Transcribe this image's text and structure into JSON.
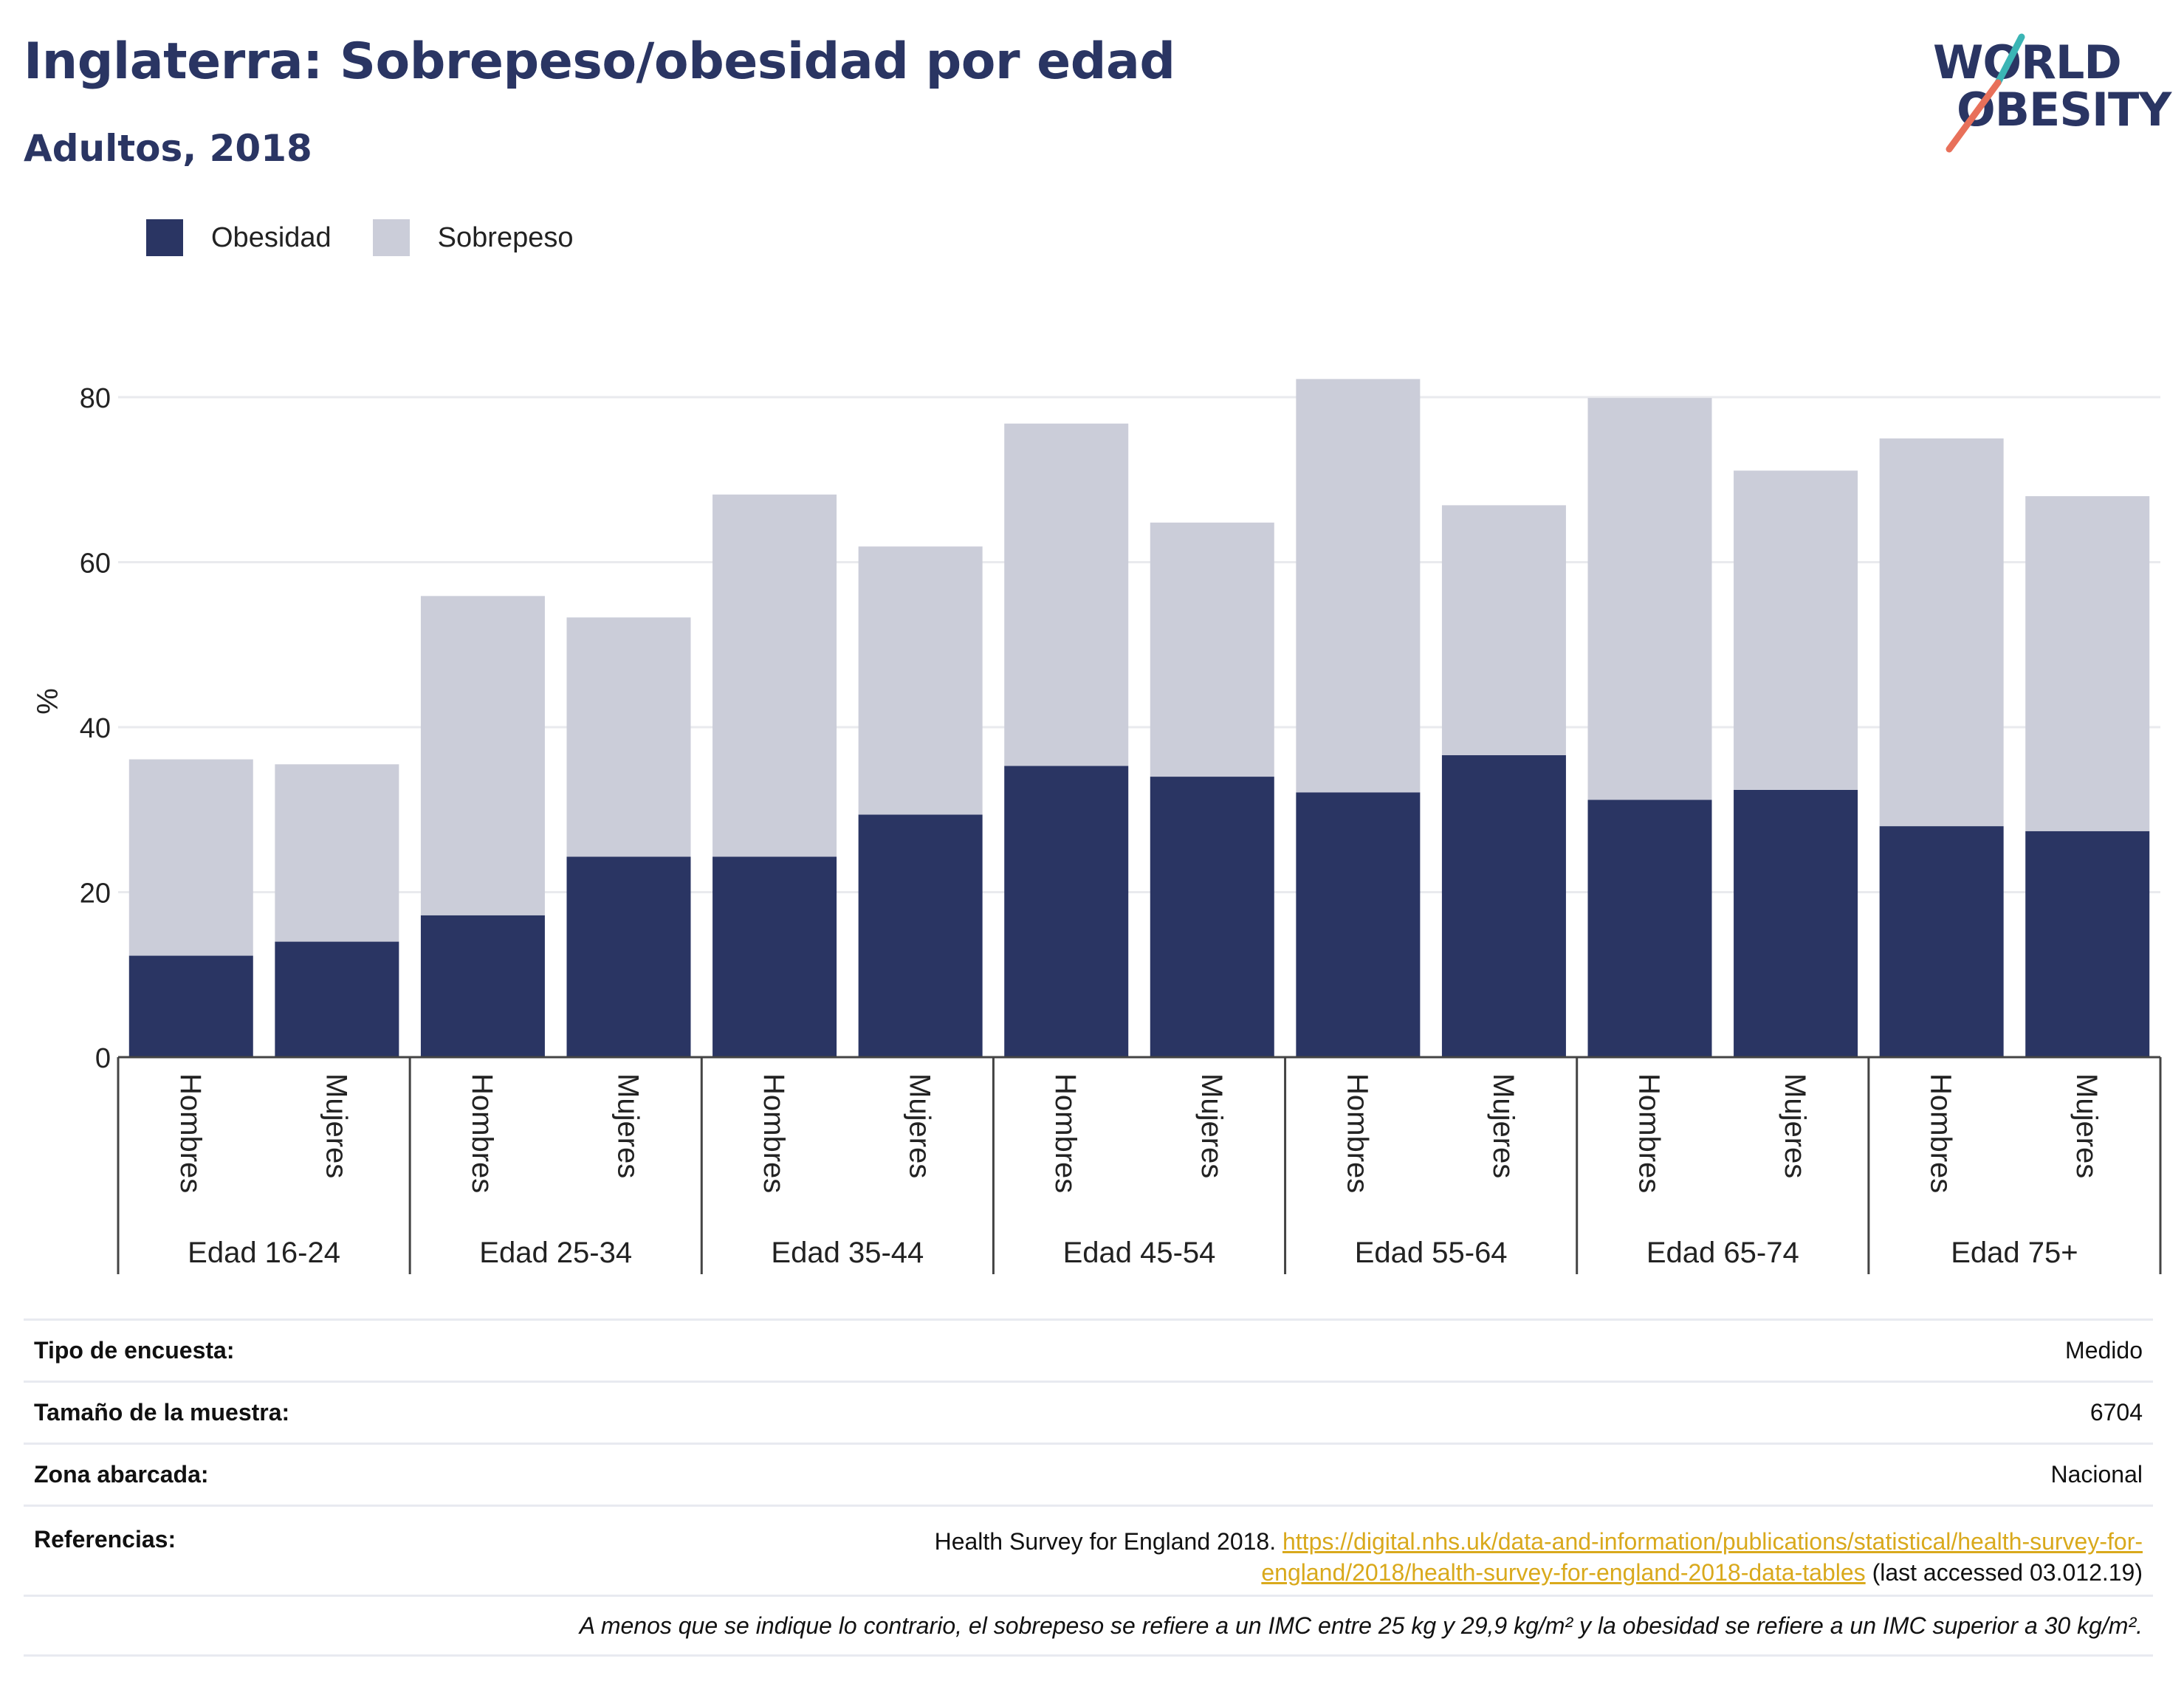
{
  "header": {
    "title": "Inglaterra: Sobrepeso/obesidad por edad",
    "subtitle": "Adultos, 2018"
  },
  "logo": {
    "line1": "WORLD",
    "line2": "OBESITY"
  },
  "colors": {
    "obesity": "#2a3563",
    "overweight": "#cbcdd9",
    "title": "#2a3563",
    "link": "#d9a91c",
    "logo_accent_teal": "#3bb5b5",
    "logo_accent_red": "#e8705a"
  },
  "chart_data": {
    "type": "bar",
    "stacked": true,
    "ylabel": "%",
    "ylim": [
      0,
      85
    ],
    "yticks": [
      0,
      20,
      40,
      60,
      80
    ],
    "grid": true,
    "legend_position": "top-left",
    "groups": [
      "Edad 16-24",
      "Edad 25-34",
      "Edad 35-44",
      "Edad 45-54",
      "Edad 55-64",
      "Edad 65-74",
      "Edad 75+"
    ],
    "subcategories": [
      "Hombres",
      "Mujeres"
    ],
    "series": [
      {
        "name": "Obesidad",
        "values": [
          12.3,
          14.0,
          17.2,
          24.3,
          24.3,
          29.4,
          35.3,
          34.0,
          32.1,
          36.6,
          31.2,
          32.4,
          28.0,
          27.4
        ]
      },
      {
        "name": "Sobrepeso",
        "values": [
          23.8,
          21.5,
          38.7,
          29.0,
          43.9,
          32.5,
          41.5,
          30.8,
          50.1,
          30.3,
          48.7,
          38.7,
          47.0,
          40.6
        ]
      }
    ]
  },
  "info": {
    "survey_type_label": "Tipo de encuesta:",
    "survey_type_value": "Medido",
    "sample_size_label": "Tamaño de la muestra:",
    "sample_size_value": "6704",
    "area_label": "Zona abarcada:",
    "area_value": "Nacional",
    "references_label": "Referencias:",
    "references_text": "Health Survey for England 2018.",
    "references_link_line1": "https://digital.nhs.uk/data-and-information/publications/statistical/health-survey-for-",
    "references_link_line2": "england/2018/health-survey-for-england-2018-data-tables",
    "references_suffix": "(last accessed 03.012.19)",
    "note": "A menos que se indique lo contrario, el sobrepeso se refiere a un IMC entre 25 kg y 29,9 kg/m² y la obesidad se refiere a un IMC superior a 30 kg/m²."
  }
}
